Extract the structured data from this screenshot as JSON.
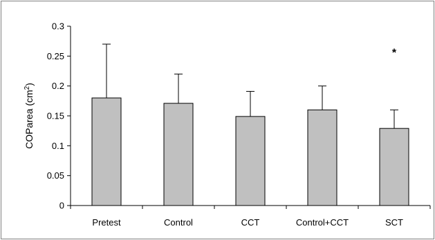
{
  "chart_data": {
    "type": "bar",
    "title": "",
    "xlabel": "",
    "ylabel": "COParea (cm²)",
    "ylabel_parts": [
      "COParea (cm",
      "2",
      ")"
    ],
    "categories": [
      "Pretest",
      "Control",
      "CCT",
      "Control+CCT",
      "SCT"
    ],
    "values": [
      0.18,
      0.171,
      0.149,
      0.16,
      0.129
    ],
    "error_upper": [
      0.09,
      0.049,
      0.042,
      0.04,
      0.031
    ],
    "ylim": [
      0,
      0.3
    ],
    "yticks": [
      0,
      0.05,
      0.1,
      0.15,
      0.2,
      0.25,
      0.3
    ],
    "ytick_labels": [
      "0",
      "0.05",
      "0.1",
      "0.15",
      "0.2",
      "0.25",
      "0.3"
    ],
    "grid": false,
    "legend": "none",
    "annotations": [
      {
        "category": "SCT",
        "text": "*",
        "y": 0.26
      }
    ],
    "colors": {
      "bar_fill": "#c0c0c0",
      "bar_stroke": "#000000",
      "frame": "#808080"
    }
  }
}
